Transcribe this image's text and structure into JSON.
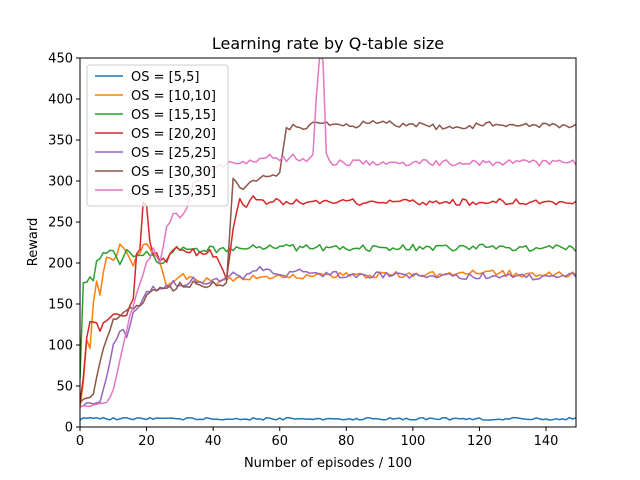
{
  "chart_data": {
    "type": "line",
    "title": "Learning rate by Q-table size",
    "xlabel": "Number of episodes / 100",
    "ylabel": "Reward",
    "xlim": [
      0,
      149
    ],
    "ylim": [
      0,
      450
    ],
    "xticks": [
      0,
      20,
      40,
      60,
      80,
      100,
      120,
      140
    ],
    "yticks": [
      0,
      50,
      100,
      150,
      200,
      250,
      300,
      350,
      400,
      450
    ],
    "legend_position": "top-left",
    "grid": false,
    "series": [
      {
        "name": "OS = [5,5]",
        "color": "#1f77b4",
        "keypoints": [
          [
            0,
            10
          ],
          [
            2,
            11
          ],
          [
            5,
            10
          ],
          [
            10,
            10
          ],
          [
            20,
            10
          ],
          [
            40,
            10
          ],
          [
            60,
            10
          ],
          [
            80,
            10
          ],
          [
            100,
            10
          ],
          [
            120,
            10
          ],
          [
            140,
            10
          ],
          [
            149,
            10
          ]
        ]
      },
      {
        "name": "OS = [10,10]",
        "color": "#ff7f0e",
        "keypoints": [
          [
            0,
            25
          ],
          [
            1,
            55
          ],
          [
            2,
            110
          ],
          [
            3,
            95
          ],
          [
            4,
            150
          ],
          [
            5,
            175
          ],
          [
            6,
            165
          ],
          [
            8,
            205
          ],
          [
            10,
            200
          ],
          [
            12,
            220
          ],
          [
            14,
            215
          ],
          [
            16,
            200
          ],
          [
            18,
            215
          ],
          [
            20,
            225
          ],
          [
            22,
            210
          ],
          [
            24,
            200
          ],
          [
            26,
            175
          ],
          [
            28,
            180
          ],
          [
            30,
            185
          ],
          [
            34,
            180
          ],
          [
            38,
            178
          ],
          [
            42,
            175
          ],
          [
            46,
            180
          ],
          [
            50,
            182
          ],
          [
            60,
            183
          ],
          [
            70,
            185
          ],
          [
            80,
            186
          ],
          [
            90,
            185
          ],
          [
            100,
            187
          ],
          [
            110,
            186
          ],
          [
            120,
            188
          ],
          [
            130,
            187
          ],
          [
            140,
            186
          ],
          [
            149,
            185
          ]
        ]
      },
      {
        "name": "OS = [15,15]",
        "color": "#2ca02c",
        "keypoints": [
          [
            0,
            60
          ],
          [
            1,
            180
          ],
          [
            2,
            175
          ],
          [
            3,
            180
          ],
          [
            4,
            178
          ],
          [
            5,
            200
          ],
          [
            6,
            205
          ],
          [
            8,
            215
          ],
          [
            10,
            212
          ],
          [
            12,
            200
          ],
          [
            14,
            215
          ],
          [
            16,
            205
          ],
          [
            18,
            210
          ],
          [
            20,
            215
          ],
          [
            22,
            210
          ],
          [
            24,
            200
          ],
          [
            26,
            205
          ],
          [
            28,
            215
          ],
          [
            30,
            218
          ],
          [
            34,
            215
          ],
          [
            38,
            218
          ],
          [
            42,
            216
          ],
          [
            46,
            218
          ],
          [
            50,
            220
          ],
          [
            60,
            219
          ],
          [
            70,
            218
          ],
          [
            80,
            219
          ],
          [
            90,
            218
          ],
          [
            100,
            219
          ],
          [
            110,
            218
          ],
          [
            120,
            219
          ],
          [
            130,
            218
          ],
          [
            140,
            219
          ],
          [
            149,
            218
          ]
        ]
      },
      {
        "name": "OS = [20,20]",
        "color": "#d62728",
        "keypoints": [
          [
            0,
            30
          ],
          [
            1,
            60
          ],
          [
            2,
            110
          ],
          [
            3,
            125
          ],
          [
            4,
            128
          ],
          [
            5,
            125
          ],
          [
            6,
            120
          ],
          [
            8,
            130
          ],
          [
            10,
            135
          ],
          [
            12,
            135
          ],
          [
            14,
            140
          ],
          [
            16,
            155
          ],
          [
            17,
            210
          ],
          [
            18,
            215
          ],
          [
            19,
            275
          ],
          [
            20,
            270
          ],
          [
            21,
            225
          ],
          [
            22,
            210
          ],
          [
            23,
            215
          ],
          [
            24,
            205
          ],
          [
            26,
            200
          ],
          [
            28,
            215
          ],
          [
            30,
            220
          ],
          [
            32,
            210
          ],
          [
            34,
            215
          ],
          [
            36,
            210
          ],
          [
            38,
            215
          ],
          [
            40,
            210
          ],
          [
            42,
            200
          ],
          [
            44,
            180
          ],
          [
            46,
            245
          ],
          [
            48,
            275
          ],
          [
            50,
            272
          ],
          [
            52,
            280
          ],
          [
            55,
            275
          ],
          [
            60,
            275
          ],
          [
            70,
            275
          ],
          [
            80,
            274
          ],
          [
            90,
            275
          ],
          [
            100,
            274
          ],
          [
            110,
            275
          ],
          [
            120,
            274
          ],
          [
            130,
            275
          ],
          [
            140,
            274
          ],
          [
            149,
            275
          ]
        ]
      },
      {
        "name": "OS = [25,25]",
        "color": "#9467bd",
        "keypoints": [
          [
            0,
            25
          ],
          [
            2,
            28
          ],
          [
            4,
            28
          ],
          [
            6,
            30
          ],
          [
            8,
            60
          ],
          [
            10,
            100
          ],
          [
            12,
            120
          ],
          [
            14,
            110
          ],
          [
            16,
            140
          ],
          [
            18,
            145
          ],
          [
            20,
            165
          ],
          [
            22,
            170
          ],
          [
            24,
            165
          ],
          [
            26,
            170
          ],
          [
            28,
            175
          ],
          [
            30,
            170
          ],
          [
            32,
            175
          ],
          [
            34,
            180
          ],
          [
            36,
            175
          ],
          [
            38,
            178
          ],
          [
            40,
            180
          ],
          [
            44,
            180
          ],
          [
            46,
            185
          ],
          [
            50,
            183
          ],
          [
            54,
            195
          ],
          [
            56,
            190
          ],
          [
            60,
            185
          ],
          [
            64,
            190
          ],
          [
            70,
            187
          ],
          [
            80,
            185
          ],
          [
            90,
            185
          ],
          [
            100,
            184
          ],
          [
            110,
            183
          ],
          [
            120,
            185
          ],
          [
            130,
            184
          ],
          [
            140,
            183
          ],
          [
            149,
            186
          ]
        ]
      },
      {
        "name": "OS = [30,30]",
        "color": "#8c564b",
        "keypoints": [
          [
            0,
            30
          ],
          [
            2,
            35
          ],
          [
            4,
            40
          ],
          [
            6,
            80
          ],
          [
            8,
            110
          ],
          [
            10,
            130
          ],
          [
            12,
            135
          ],
          [
            14,
            140
          ],
          [
            16,
            145
          ],
          [
            18,
            150
          ],
          [
            20,
            160
          ],
          [
            22,
            165
          ],
          [
            24,
            168
          ],
          [
            26,
            172
          ],
          [
            28,
            168
          ],
          [
            30,
            175
          ],
          [
            32,
            170
          ],
          [
            34,
            175
          ],
          [
            36,
            172
          ],
          [
            40,
            175
          ],
          [
            42,
            170
          ],
          [
            44,
            178
          ],
          [
            46,
            300
          ],
          [
            48,
            295
          ],
          [
            50,
            292
          ],
          [
            52,
            300
          ],
          [
            56,
            305
          ],
          [
            60,
            310
          ],
          [
            62,
            365
          ],
          [
            64,
            368
          ],
          [
            66,
            365
          ],
          [
            70,
            370
          ],
          [
            80,
            368
          ],
          [
            90,
            370
          ],
          [
            100,
            368
          ],
          [
            110,
            365
          ],
          [
            120,
            368
          ],
          [
            130,
            370
          ],
          [
            140,
            368
          ],
          [
            149,
            368
          ]
        ]
      },
      {
        "name": "OS = [35,35]",
        "color": "#e377c2",
        "keypoints": [
          [
            0,
            25
          ],
          [
            2,
            26
          ],
          [
            4,
            27
          ],
          [
            6,
            28
          ],
          [
            8,
            30
          ],
          [
            10,
            45
          ],
          [
            12,
            80
          ],
          [
            14,
            120
          ],
          [
            16,
            150
          ],
          [
            18,
            175
          ],
          [
            20,
            200
          ],
          [
            22,
            215
          ],
          [
            24,
            200
          ],
          [
            26,
            245
          ],
          [
            28,
            260
          ],
          [
            30,
            255
          ],
          [
            32,
            270
          ],
          [
            34,
            295
          ],
          [
            36,
            300
          ],
          [
            38,
            310
          ],
          [
            40,
            318
          ],
          [
            44,
            320
          ],
          [
            50,
            320
          ],
          [
            56,
            330
          ],
          [
            60,
            325
          ],
          [
            64,
            330
          ],
          [
            68,
            325
          ],
          [
            70,
            330
          ],
          [
            71,
            400
          ],
          [
            72,
            450
          ],
          [
            73,
            450
          ],
          [
            74,
            330
          ],
          [
            76,
            322
          ],
          [
            80,
            322
          ],
          [
            90,
            322
          ],
          [
            100,
            322
          ],
          [
            110,
            322
          ],
          [
            120,
            322
          ],
          [
            130,
            322
          ],
          [
            140,
            322
          ],
          [
            149,
            322
          ]
        ]
      }
    ]
  }
}
